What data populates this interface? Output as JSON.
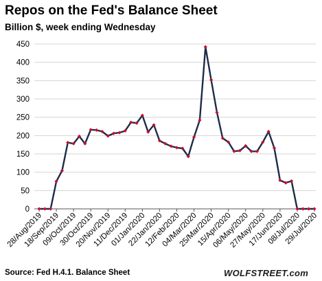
{
  "colors": {
    "line": "#1c2b4a",
    "marker": "#c8102e",
    "grid": "#d4d4d4",
    "axis": "#555555",
    "text": "#000000"
  },
  "chart_data": {
    "type": "line",
    "title": "Repos on the Fed's Balance Sheet",
    "subtitle": "Billion $, week ending Wednesday",
    "xlabel": "",
    "ylabel": "",
    "ylim": [
      0,
      450
    ],
    "yticks": [
      0,
      50,
      100,
      150,
      200,
      250,
      300,
      350,
      400,
      450
    ],
    "grid": "horizontal",
    "legend": "none",
    "marker_style": "diamond",
    "x": [
      "2019-08-28",
      "2019-09-04",
      "2019-09-11",
      "2019-09-18",
      "2019-09-25",
      "2019-10-02",
      "2019-10-09",
      "2019-10-16",
      "2019-10-23",
      "2019-10-30",
      "2019-11-06",
      "2019-11-13",
      "2019-11-20",
      "2019-11-27",
      "2019-12-04",
      "2019-12-11",
      "2019-12-18",
      "2019-12-25",
      "2020-01-01",
      "2020-01-08",
      "2020-01-15",
      "2020-01-22",
      "2020-01-29",
      "2020-02-05",
      "2020-02-12",
      "2020-02-19",
      "2020-02-26",
      "2020-03-04",
      "2020-03-11",
      "2020-03-18",
      "2020-03-25",
      "2020-04-01",
      "2020-04-08",
      "2020-04-15",
      "2020-04-22",
      "2020-04-29",
      "2020-05-06",
      "2020-05-13",
      "2020-05-20",
      "2020-05-27",
      "2020-06-03",
      "2020-06-10",
      "2020-06-17",
      "2020-06-24",
      "2020-07-01",
      "2020-07-08",
      "2020-07-15",
      "2020-07-22",
      "2020-07-29"
    ],
    "series": [
      {
        "values": [
          0,
          0,
          0,
          75,
          104,
          181,
          178,
          198,
          178,
          216,
          215,
          211,
          199,
          206,
          208,
          213,
          236,
          234,
          255,
          210,
          229,
          186,
          178,
          171,
          167,
          165,
          143,
          196,
          242,
          442,
          352,
          263,
          193,
          182,
          157,
          159,
          172,
          157,
          157,
          182,
          211,
          166,
          78,
          71,
          76,
          0,
          0,
          0,
          0
        ]
      }
    ],
    "x_tick_labels": [
      "28/Aug/2019",
      "18/Sep/2019",
      "09/Oct/2019",
      "30/Oct/2019",
      "20/Nov/2019",
      "11/Dec/2019",
      "01/Jan/2020",
      "22/Jan/2020",
      "12/Feb/2020",
      "04/Mar/2020",
      "25/Mar/2020",
      "15/Apr/2020",
      "06/May/2020",
      "27/May/2020",
      "17/Jun/2020",
      "08/Jul/2020",
      "29/Jul/2020"
    ],
    "x_tick_step": 3
  },
  "source": "Source: Fed H.4.1. Balance Sheet",
  "brand": "WOLFSTREET.com"
}
